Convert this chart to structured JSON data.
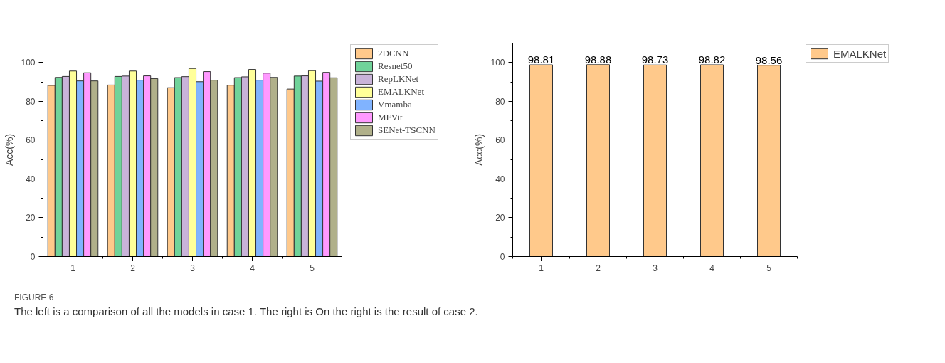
{
  "chart_data": [
    {
      "type": "bar",
      "ylabel": "Acc(%)",
      "categories": [
        "1",
        "2",
        "3",
        "4",
        "5"
      ],
      "ylim": [
        0,
        110
      ],
      "yticks": [
        0,
        20,
        40,
        60,
        80,
        100
      ],
      "legend": "top right",
      "grid": false,
      "series": [
        {
          "name": "2DCNN",
          "color": "#ffc98b",
          "values": [
            88.2,
            88.4,
            87.0,
            88.3,
            86.3
          ]
        },
        {
          "name": "Resnet50",
          "color": "#70d39a",
          "values": [
            92.3,
            92.8,
            92.2,
            92.2,
            93.0
          ]
        },
        {
          "name": "RepLKNet",
          "color": "#c9b3d9",
          "values": [
            92.8,
            93.0,
            92.7,
            92.6,
            93.1
          ]
        },
        {
          "name": "EMALKNet",
          "color": "#ffff99",
          "values": [
            95.6,
            95.6,
            96.9,
            96.4,
            95.8
          ]
        },
        {
          "name": "Vmamba",
          "color": "#80b3ff",
          "values": [
            90.5,
            90.9,
            90.1,
            90.9,
            90.4
          ]
        },
        {
          "name": "MFVit",
          "color": "#ff99ff",
          "values": [
            94.7,
            93.1,
            95.3,
            94.5,
            94.9
          ]
        },
        {
          "name": "SENet-TSCNN",
          "color": "#b0b08a",
          "values": [
            90.5,
            91.7,
            90.9,
            92.3,
            92.1
          ]
        }
      ],
      "annotations": [
        "FIGURE 6",
        "The left is a comparison of all the models in case 1. The right is On the right is the result of case 2."
      ]
    },
    {
      "type": "bar",
      "ylabel": "Acc(%)",
      "categories": [
        "1",
        "2",
        "3",
        "4",
        "5"
      ],
      "ylim": [
        0,
        110
      ],
      "yticks": [
        0,
        20,
        40,
        60,
        80,
        100
      ],
      "legend": "top right",
      "grid": false,
      "data_labels": true,
      "series": [
        {
          "name": "EMALKNet",
          "color": "#ffc98b",
          "values": [
            98.81,
            98.88,
            98.73,
            98.82,
            98.56
          ]
        }
      ]
    }
  ]
}
